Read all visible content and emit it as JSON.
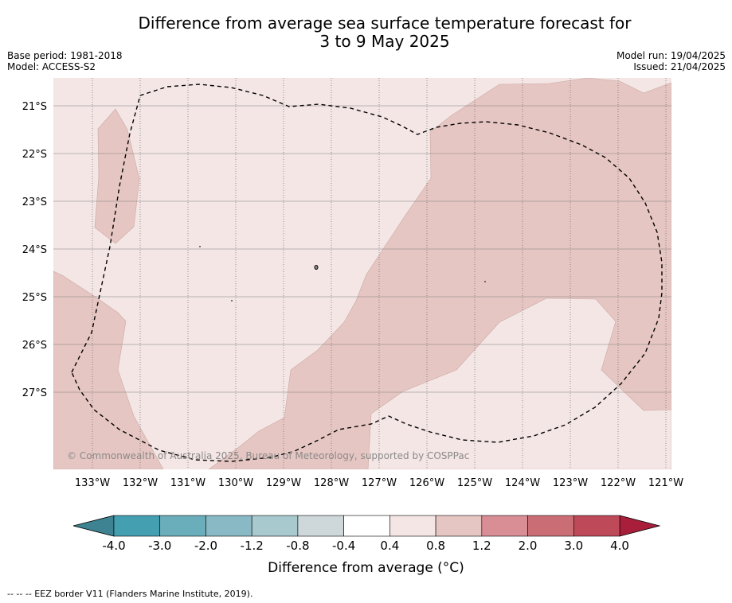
{
  "title_line1": "Difference from average sea surface temperature forecast for",
  "title_line2": "3 to 9 May 2025",
  "meta": {
    "base_period": "Base period: 1981-2018",
    "model": "Model: ACCESS-S2",
    "model_run": "Model run: 19/04/2025",
    "issued": "Issued: 21/04/2025"
  },
  "map": {
    "lat_labels": [
      "21°S",
      "22°S",
      "23°S",
      "24°S",
      "25°S",
      "26°S",
      "27°S"
    ],
    "lon_labels": [
      "133°W",
      "132°W",
      "131°W",
      "130°W",
      "129°W",
      "128°W",
      "127°W",
      "126°W",
      "125°W",
      "124°W",
      "123°W",
      "122°W",
      "121°W"
    ],
    "copyright": "© Commonwealth of Australia 2025, Bureau of Meteorology, supported by COSPPac",
    "colors": {
      "background_anomaly": "#f4e6e5",
      "positive_anomaly": "#e6c6c2",
      "eez_border": "#000000"
    }
  },
  "colorbar": {
    "tick_labels": [
      "-4.0",
      "-3.0",
      "-2.0",
      "-1.2",
      "-0.8",
      "-0.4",
      "0.4",
      "0.8",
      "1.2",
      "2.0",
      "3.0",
      "4.0"
    ],
    "bin_colors": [
      "#449fb1",
      "#6aaebb",
      "#88b9c4",
      "#a8c9ce",
      "#ced8da",
      "#ffffff",
      "#f4e6e5",
      "#e6c6c2",
      "#d98d94",
      "#cb6d75",
      "#be4958"
    ],
    "under_color": "#3e8391",
    "over_color": "#a91e3b",
    "label": "Difference from average (°C)"
  },
  "legend_footer": "--  --  -- EEZ border V11 (Flanders Marine Institute, 2019)."
}
